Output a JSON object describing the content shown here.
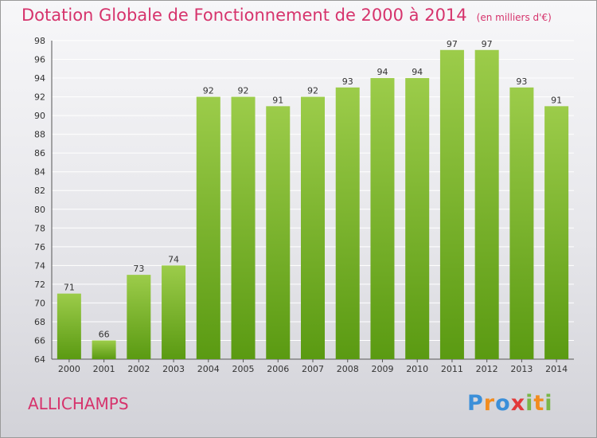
{
  "header": {
    "title": "Dotation Globale de Fonctionnement de 2000 à 2014",
    "unit": "(en milliers d'€)"
  },
  "footer": {
    "commune": "ALLICHAMPS",
    "logo_letters": [
      {
        "char": "P",
        "color": "#3b8fd9"
      },
      {
        "char": "r",
        "color": "#f28c1e"
      },
      {
        "char": "o",
        "color": "#3b8fd9"
      },
      {
        "char": "x",
        "color": "#e23a3a"
      },
      {
        "char": "i",
        "color": "#7ab648"
      },
      {
        "char": "t",
        "color": "#f28c1e"
      },
      {
        "char": "i",
        "color": "#7ab648"
      }
    ]
  },
  "chart_data": {
    "type": "bar",
    "title": "Dotation Globale de Fonctionnement de 2000 à 2014",
    "subtitle": "(en milliers d'€)",
    "categories": [
      "2000",
      "2001",
      "2002",
      "2003",
      "2004",
      "2005",
      "2006",
      "2007",
      "2008",
      "2009",
      "2010",
      "2011",
      "2012",
      "2013",
      "2014"
    ],
    "values": [
      71,
      66,
      73,
      74,
      92,
      92,
      91,
      92,
      93,
      94,
      94,
      97,
      97,
      93,
      91
    ],
    "ylim": [
      64,
      98
    ],
    "yticks": [
      64,
      66,
      68,
      70,
      72,
      74,
      76,
      78,
      80,
      82,
      84,
      86,
      88,
      90,
      92,
      94,
      96,
      98
    ],
    "grid": true,
    "colors": {
      "bar_top": "#9ccc4a",
      "bar_bottom": "#5a9a12",
      "grid": "#ffffff"
    }
  }
}
